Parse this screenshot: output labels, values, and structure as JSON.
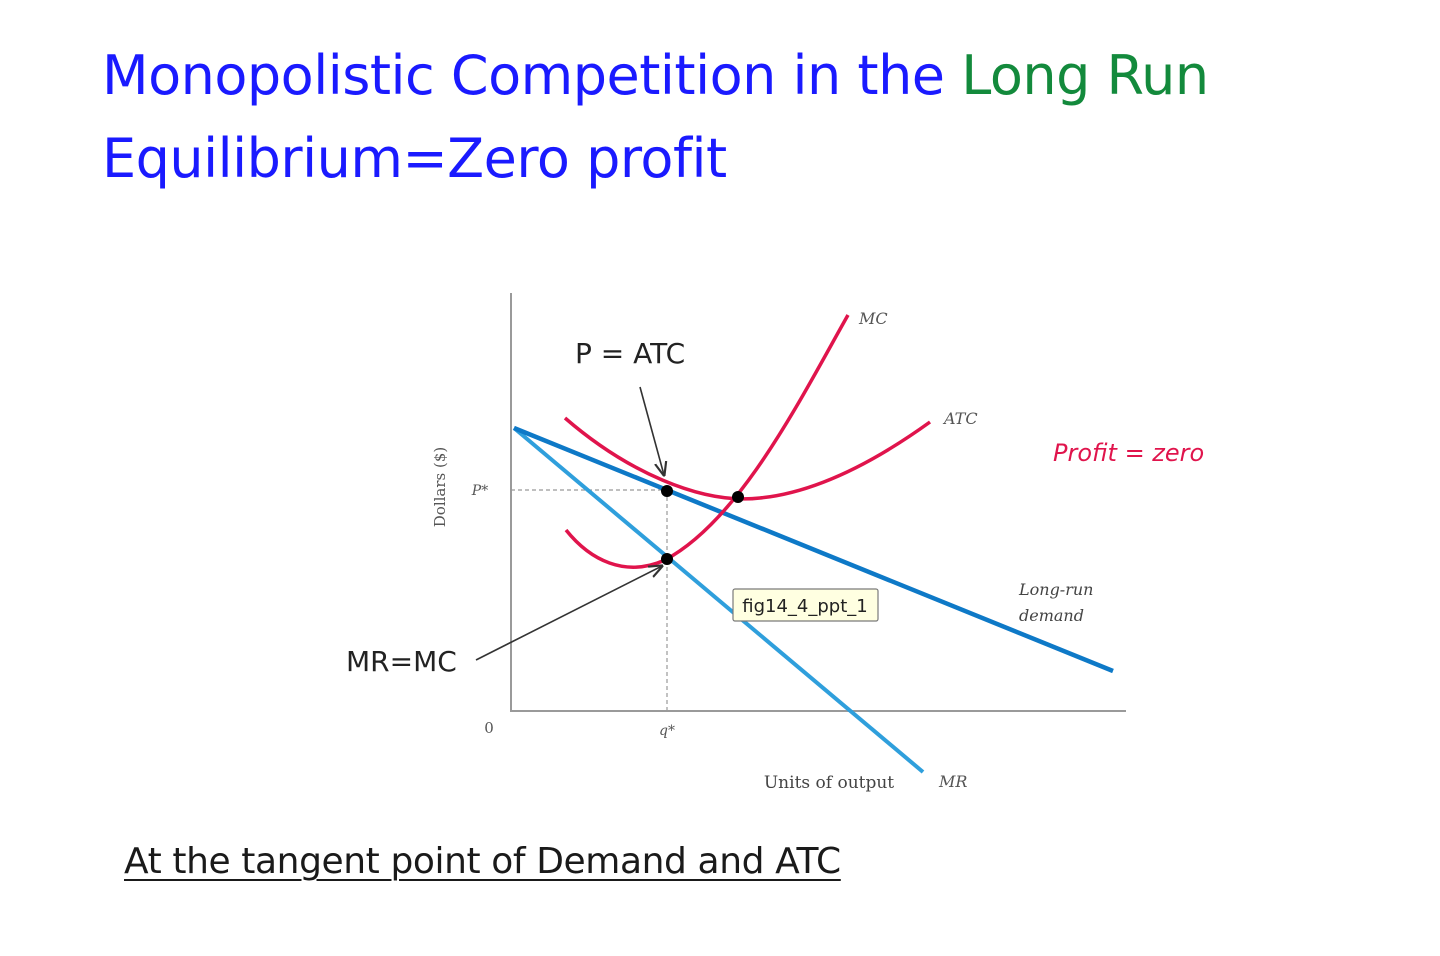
{
  "colors": {
    "title_blue": "#1a1aff",
    "title_green": "#138a3c",
    "cost_red": "#e0144c",
    "demand_blue": "#0e79c7",
    "mr_blue": "#2f9fdc",
    "axis_gray": "#9a9a9a",
    "tooltip_bg": "#ffffe1"
  },
  "title": {
    "line1_blue": "Monopolistic Competition in the ",
    "line1_green": "Long Run",
    "line2": "Equilibrium=Zero profit"
  },
  "diagram": {
    "y_axis_label": "Dollars ($)",
    "x_axis_label": "Units of output",
    "origin_label": "0",
    "price_tick": "P*",
    "quantity_tick": "q*",
    "curve_mc": "MC",
    "curve_atc": "ATC",
    "curve_demand_line1": "Long-run",
    "curve_demand_line2": "demand",
    "curve_mr": "MR",
    "annotation_p_atc": "P = ATC",
    "annotation_mr_mc": "MR=MC",
    "annotation_profit": "Profit = zero",
    "tooltip": "fig14_4_ppt_1"
  },
  "caption": "At the tangent point of Demand and ATC"
}
